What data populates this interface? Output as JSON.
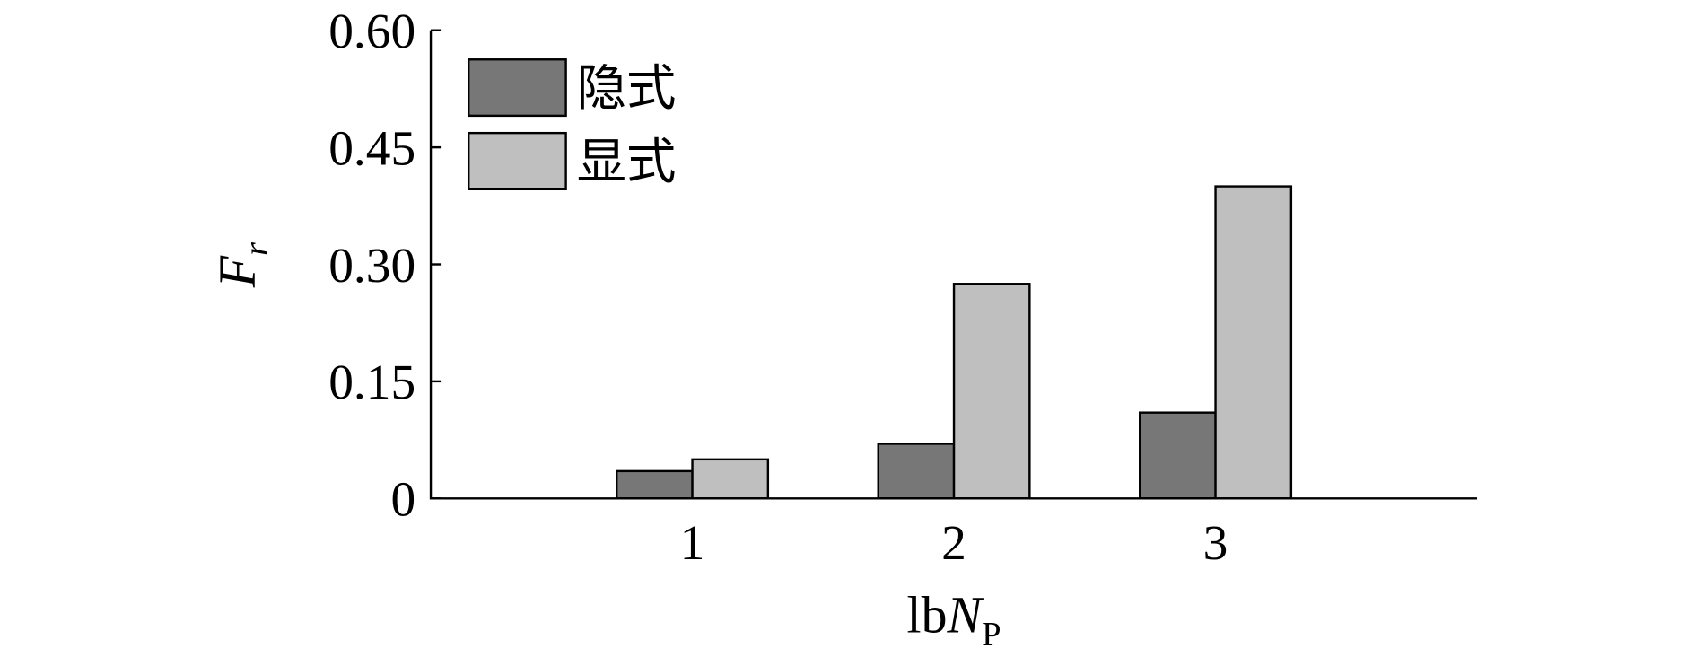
{
  "chart_data": {
    "type": "bar",
    "y_label": {
      "main": "F",
      "sub": "r"
    },
    "x_label": {
      "prefix": "lb",
      "main": "N",
      "sub": "P"
    },
    "x": [
      1,
      2,
      3
    ],
    "xlim": [
      0,
      4
    ],
    "xticks": [
      1,
      2,
      3
    ],
    "ylim": [
      0,
      0.6
    ],
    "yticks": [
      0,
      0.15,
      {
        "value": 0.3,
        "label": "0.30"
      },
      0.45,
      {
        "value": 0.6,
        "label": "0.60"
      }
    ],
    "legend": "upper left",
    "series": [
      {
        "name": "隐式",
        "color": "#777777",
        "values": [
          0.035,
          0.07,
          0.11
        ]
      },
      {
        "name": "显式",
        "color": "#bfbfbf",
        "values": [
          0.05,
          0.275,
          0.4
        ]
      }
    ]
  }
}
